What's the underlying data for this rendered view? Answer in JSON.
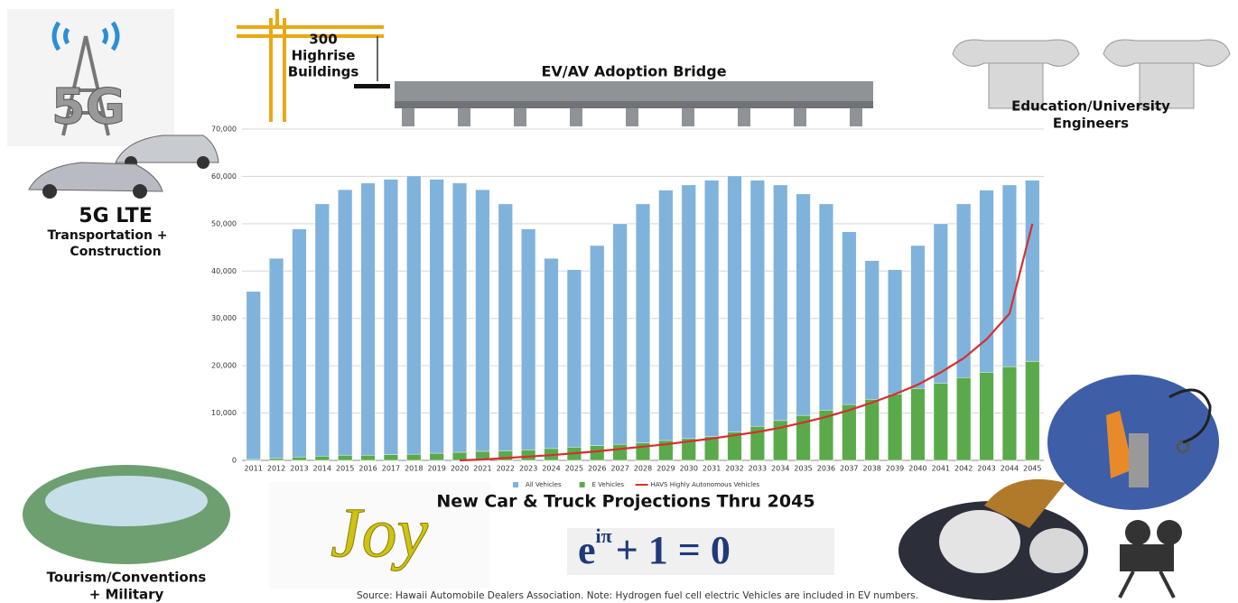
{
  "chart_data": {
    "type": "bar",
    "title": "New Car & Truck Projections Thru 2045",
    "categories": [
      "2011",
      "2012",
      "2013",
      "2014",
      "2015",
      "2016",
      "2017",
      "2018",
      "2019",
      "2020",
      "2021",
      "2022",
      "2023",
      "2024",
      "2025",
      "2026",
      "2027",
      "2028",
      "2029",
      "2030",
      "2031",
      "2032",
      "2033",
      "2034",
      "2035",
      "2036",
      "2037",
      "2038",
      "2039",
      "2040",
      "2041",
      "2042",
      "2043",
      "2044",
      "2045"
    ],
    "series": [
      {
        "name": "All Vehicles",
        "type": "bar",
        "color": "#7fb3dc",
        "values": [
          35700,
          42700,
          48900,
          54200,
          57200,
          58600,
          59400,
          60100,
          59400,
          58600,
          57200,
          54200,
          48900,
          42700,
          40300,
          45400,
          50000,
          54200,
          57100,
          58200,
          59200,
          60100,
          59200,
          58200,
          56300,
          54200,
          48300,
          42200,
          40300,
          45400,
          50000,
          54200,
          57100,
          58200,
          59200
        ]
      },
      {
        "name": "E Vehicles",
        "type": "bar",
        "color": "#5aaa4c",
        "values": [
          200,
          400,
          700,
          900,
          1100,
          1100,
          1200,
          1300,
          1500,
          1700,
          1900,
          2000,
          2200,
          2500,
          2800,
          3100,
          3400,
          3700,
          4200,
          4600,
          5000,
          6000,
          7200,
          8400,
          9500,
          10600,
          11800,
          12900,
          14000,
          15200,
          16300,
          17500,
          18600,
          19800,
          20900
        ]
      },
      {
        "name": "HAVS Highly Autonomous Vehicles",
        "type": "line",
        "color": "#d62f2f",
        "values": [
          null,
          null,
          null,
          null,
          null,
          null,
          null,
          null,
          null,
          0,
          200,
          500,
          800,
          1100,
          1500,
          1900,
          2400,
          2900,
          3400,
          4000,
          4600,
          5300,
          6000,
          6900,
          8000,
          9200,
          10600,
          12200,
          14000,
          16000,
          18600,
          21600,
          25600,
          31000,
          50000
        ]
      }
    ],
    "ylim": [
      0,
      70000
    ],
    "yticks": [
      0,
      {
        "value": 10000,
        "label": "10,000"
      },
      {
        "value": 20000,
        "label": "20,000"
      },
      {
        "value": 30000,
        "label": "30,000"
      },
      {
        "value": 40000,
        "label": "40,000"
      },
      {
        "value": 50000,
        "label": "50,000"
      },
      {
        "value": 60000,
        "label": "60,000"
      },
      {
        "value": 70000,
        "label": "70,000"
      }
    ],
    "grid": true,
    "legend": "bottom"
  },
  "annotations": {
    "bridge": "EV/AV Adoption Bridge",
    "highrise": [
      "300",
      "Highrise",
      "Buildings"
    ],
    "tower_icon": "5G",
    "lte": "5G LTE",
    "lte_sub": [
      "Transportation +",
      "Construction"
    ],
    "education": [
      "Education/University",
      "Engineers"
    ],
    "tourism": [
      "Tourism/Conventions",
      "+ Military"
    ],
    "logo": "Joy",
    "equation": {
      "base": "e",
      "exponent": "iπ",
      "rest": "+ 1 = 0"
    },
    "source": "Source: Hawaii Automobile Dealers Association. Note: Hydrogen fuel cell electric Vehicles are included in EV numbers."
  }
}
